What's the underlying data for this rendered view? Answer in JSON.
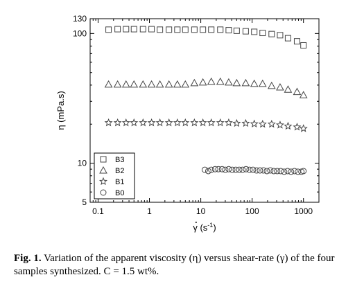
{
  "chart_data": {
    "type": "scatter",
    "xscale": "log",
    "yscale": "log",
    "xlim": [
      0.07,
      2000
    ],
    "ylim": [
      5,
      130
    ],
    "xticks": [
      "0.1",
      "1",
      "10",
      "100",
      "1000"
    ],
    "yticks": [
      "5",
      "10",
      "100",
      "130"
    ],
    "xlabel_symbol": "γ",
    "xlabel_unit_open": "(s",
    "xlabel_unit_exp": "-1",
    "xlabel_unit_close": ")",
    "ylabel": "η (mPa.s)",
    "legend_position": "lower-left",
    "series": [
      {
        "name": "B3",
        "marker": "square",
        "x": [
          0.16,
          0.24,
          0.35,
          0.5,
          0.75,
          1.1,
          1.6,
          2.4,
          3.5,
          5,
          7.5,
          11,
          16,
          24,
          35,
          50,
          75,
          110,
          160,
          240,
          350,
          500,
          750,
          1000
        ],
        "y": [
          107,
          108,
          108,
          108,
          108,
          108,
          107,
          107,
          107,
          107,
          107,
          107,
          107,
          107,
          106,
          105,
          104,
          103,
          101,
          99,
          97,
          92,
          87,
          81
        ]
      },
      {
        "name": "B2",
        "marker": "triangle",
        "x": [
          0.16,
          0.24,
          0.35,
          0.5,
          0.75,
          1.1,
          1.6,
          2.4,
          3.5,
          5,
          7.5,
          11,
          16,
          24,
          35,
          50,
          75,
          110,
          160,
          240,
          350,
          500,
          750,
          1000
        ],
        "y": [
          40.5,
          40.5,
          40.5,
          40.5,
          40.5,
          40.5,
          40.5,
          40.5,
          40.5,
          40.5,
          41.5,
          42,
          42.5,
          42.5,
          42,
          41.5,
          41.5,
          41,
          41,
          39.5,
          38.5,
          37,
          35.5,
          33.5
        ]
      },
      {
        "name": "B1",
        "marker": "star",
        "x": [
          0.16,
          0.24,
          0.35,
          0.5,
          0.75,
          1.1,
          1.6,
          2.4,
          3.5,
          5,
          7.5,
          11,
          16,
          24,
          35,
          50,
          75,
          110,
          160,
          240,
          350,
          500,
          750,
          1000
        ],
        "y": [
          20.5,
          20.5,
          20.5,
          20.5,
          20.5,
          20.5,
          20.5,
          20.5,
          20.5,
          20.5,
          20.5,
          20.5,
          20.5,
          20.5,
          20.5,
          20.3,
          20.3,
          20.1,
          20,
          20,
          19.7,
          19.3,
          19,
          18.5
        ]
      },
      {
        "name": "B0",
        "marker": "circle",
        "x": [
          12,
          14,
          16,
          19,
          22,
          26,
          30,
          35,
          41,
          48,
          56,
          65,
          76,
          89,
          104,
          122,
          142,
          166,
          194,
          226,
          264,
          308,
          360,
          420,
          490,
          572,
          668,
          780,
          910,
          1000
        ],
        "y": [
          8.9,
          8.7,
          8.9,
          9.0,
          9.0,
          9.0,
          8.9,
          9.0,
          8.9,
          8.9,
          8.9,
          8.9,
          9.0,
          8.9,
          8.9,
          8.8,
          8.8,
          8.8,
          8.7,
          8.8,
          8.7,
          8.7,
          8.7,
          8.6,
          8.7,
          8.6,
          8.7,
          8.6,
          8.6,
          8.7
        ]
      }
    ]
  },
  "caption": {
    "label": "Fig. 1.",
    "text": "Variation of the apparent viscosity (η) versus shear-rate (γ) of the four samples synthesized. C = 1.5 wt%."
  }
}
